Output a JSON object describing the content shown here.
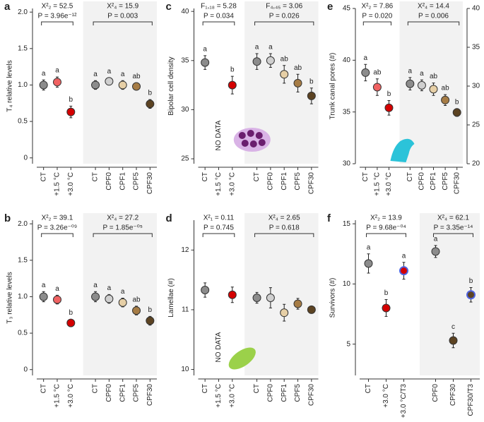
{
  "chart_data": [
    {
      "type": "dot",
      "panel": "a",
      "ylabel": "T₄ relative levels",
      "ylim": [
        -0.08,
        2.05
      ],
      "yticks": [
        0,
        0.5,
        {
          "value": 1,
          "label": "1.0"
        },
        1.5,
        {
          "value": 2,
          "label": "2.0"
        }
      ],
      "groups": [
        {
          "stat": "X²₂ = 52.5",
          "p": "P = 3.96e⁻¹²",
          "categories": [
            "CT",
            "+1.5 °C",
            "+3.0 °C"
          ],
          "values": [
            1.0,
            1.04,
            0.63
          ],
          "errors": [
            0.07,
            0.07,
            0.08
          ],
          "letters": [
            "a",
            "a",
            "b"
          ],
          "colors": [
            "#8c8c8c",
            "#f06262",
            "#d40000"
          ]
        },
        {
          "stat": "X²₄ = 15.9",
          "p": "P = 0.003",
          "categories": [
            "CT",
            "CPF0",
            "CPF1",
            "CPF5",
            "CPF30"
          ],
          "values": [
            1.0,
            1.05,
            1.0,
            0.98,
            0.74
          ],
          "errors": [
            0.06,
            0.05,
            0.06,
            0.05,
            0.06
          ],
          "letters": [
            "a",
            "a",
            "a",
            "ab",
            "b"
          ],
          "colors": [
            "#8c8c8c",
            "#cfcfcf",
            "#e6cfa6",
            "#a67c45",
            "#5c4322"
          ]
        }
      ]
    },
    {
      "type": "dot",
      "panel": "b",
      "ylabel": "T₃ relative levels",
      "ylim": [
        -0.08,
        2.05
      ],
      "yticks": [
        0,
        0.5,
        {
          "value": 1,
          "label": "1.0"
        },
        1.5,
        {
          "value": 2,
          "label": "2.0"
        }
      ],
      "groups": [
        {
          "stat": "X²₂ = 39.1",
          "p": "P = 3.26e⁻⁰⁹",
          "categories": [
            "CT",
            "+1.5 °C",
            "+3.0 °C"
          ],
          "values": [
            1.0,
            0.96,
            0.64
          ],
          "errors": [
            0.07,
            0.06,
            0.05
          ],
          "letters": [
            "a",
            "a",
            "b"
          ],
          "colors": [
            "#8c8c8c",
            "#f06262",
            "#d40000"
          ]
        },
        {
          "stat": "X²₄ = 27.2",
          "p": "P = 1.85e⁻⁰⁵",
          "categories": [
            "CT",
            "CPF0",
            "CPF1",
            "CPF5",
            "CPF30"
          ],
          "values": [
            1.0,
            0.97,
            0.92,
            0.81,
            0.67
          ],
          "errors": [
            0.07,
            0.06,
            0.06,
            0.06,
            0.06
          ],
          "letters": [
            "a",
            "a",
            "a",
            "ab",
            "b"
          ],
          "colors": [
            "#8c8c8c",
            "#cfcfcf",
            "#e6cfa6",
            "#a67c45",
            "#5c4322"
          ]
        }
      ]
    },
    {
      "type": "dot",
      "panel": "c",
      "ylabel": "Bipolar cell density",
      "ylim": [
        24.5,
        40.3
      ],
      "yticks": [
        25,
        30,
        35,
        40
      ],
      "no_data": "NO DATA",
      "icon": "cells",
      "groups": [
        {
          "stat": "F₁,₁₈ = 5.28",
          "p": "P = 0.034",
          "categories": [
            "CT",
            "+1.5 °C",
            "+3.0 °C"
          ],
          "values": [
            34.8,
            null,
            32.5
          ],
          "errors": [
            0.7,
            null,
            0.9
          ],
          "letters": [
            "a",
            null,
            "b"
          ],
          "colors": [
            "#8c8c8c",
            "#f06262",
            "#d40000"
          ]
        },
        {
          "stat": "F₄,₄₅ = 3.06",
          "p": "P = 0.026",
          "categories": [
            "CT",
            "CPF0",
            "CPF1",
            "CPF5",
            "CPF30"
          ],
          "values": [
            34.9,
            35.0,
            33.6,
            32.7,
            31.4
          ],
          "errors": [
            0.8,
            0.7,
            0.9,
            0.9,
            0.8
          ],
          "letters": [
            "a",
            "a",
            "ab",
            "ab",
            "b"
          ],
          "colors": [
            "#8c8c8c",
            "#cfcfcf",
            "#e6cfa6",
            "#a67c45",
            "#5c4322"
          ]
        }
      ]
    },
    {
      "type": "dot",
      "panel": "d",
      "ylabel": "Lamellae (#)",
      "ylim": [
        9.9,
        12.5
      ],
      "yticks": [
        10,
        11,
        12
      ],
      "no_data": "NO DATA",
      "icon": "leaf",
      "groups": [
        {
          "stat": "X²₁ = 0.11",
          "p": "P = 0.745",
          "categories": [
            "CT",
            "+1.5 °C",
            "+3.0 °C"
          ],
          "values": [
            11.33,
            null,
            11.25
          ],
          "errors": [
            0.12,
            null,
            0.13
          ],
          "colors": [
            "#8c8c8c",
            "#f06262",
            "#d40000"
          ]
        },
        {
          "stat": "X²₄ = 2.65",
          "p": "P = 0.618",
          "categories": [
            "CT",
            "CPF0",
            "CPF1",
            "CPF5",
            "CPF30"
          ],
          "values": [
            11.2,
            11.2,
            10.95,
            11.1,
            11.0
          ],
          "errors": [
            0.09,
            0.17,
            0.14,
            0.09,
            0.05
          ],
          "colors": [
            "#8c8c8c",
            "#cfcfcf",
            "#e6cfa6",
            "#a67c45",
            "#5c4322"
          ]
        }
      ]
    },
    {
      "type": "dot",
      "panel": "e",
      "ylabel": "Trunk canal pores (#)",
      "ylim": [
        30,
        45
      ],
      "yticks": [
        30,
        35,
        40,
        45
      ],
      "y2lim": [
        20,
        40
      ],
      "y2ticks": [
        20,
        25,
        30,
        35,
        40
      ],
      "icon": "skull",
      "groups": [
        {
          "stat": "X²₂ = 7.86",
          "p": "P = 0.020",
          "categories": [
            "CT",
            "+1.5 °C",
            "+3.0 °C"
          ],
          "values": [
            38.8,
            37.4,
            35.4
          ],
          "errors": [
            0.8,
            0.8,
            0.7
          ],
          "letters": [
            "a",
            "ab",
            "b"
          ],
          "colors": [
            "#8c8c8c",
            "#f06262",
            "#d40000"
          ]
        },
        {
          "stat": "X²₄ = 14.4",
          "p": "P = 0.006",
          "axis": "y2",
          "categories": [
            "CT",
            "CPF0",
            "CPF1",
            "CPF5",
            "CPF30"
          ],
          "values": [
            30.3,
            30.1,
            29.6,
            28.2,
            26.6
          ],
          "errors": [
            0.8,
            0.7,
            0.8,
            0.7,
            0.5
          ],
          "letters": [
            "a",
            "a",
            "ab",
            "ab",
            "b"
          ],
          "colors": [
            "#8c8c8c",
            "#cfcfcf",
            "#e6cfa6",
            "#a67c45",
            "#5c4322"
          ]
        }
      ]
    },
    {
      "type": "dot",
      "panel": "f",
      "ylabel": "Survivors (#)",
      "ylim": [
        2.4,
        15.3
      ],
      "yticks": [
        5,
        10,
        15
      ],
      "groups": [
        {
          "stat": "X²₂ = 13.9",
          "p": "P = 9.68e⁻⁰⁴",
          "categories": [
            "CT",
            "+3.0 °C",
            "+3.0 °C/T3"
          ],
          "values": [
            11.7,
            8.0,
            11.1
          ],
          "errors": [
            0.8,
            0.7,
            0.7
          ],
          "letters": [
            "a",
            "b",
            "a"
          ],
          "colors": [
            "#8c8c8c",
            "#d40000",
            "#d40000"
          ],
          "edge_colors": [
            "#333333",
            "#333333",
            "#4f63e0"
          ]
        },
        {
          "stat": "X²₄ = 62.1",
          "p": "P = 3.35e⁻¹⁴",
          "categories": [
            "CPF0",
            "CPF30",
            "CPF30/T3"
          ],
          "values": [
            12.7,
            5.3,
            9.1
          ],
          "errors": [
            0.5,
            0.6,
            0.6
          ],
          "letters": [
            "a",
            "c",
            "b"
          ],
          "colors": [
            "#8c8c8c",
            "#5c4322",
            "#5c4322"
          ],
          "edge_colors": [
            "#333333",
            "#333333",
            "#4f63e0"
          ]
        }
      ]
    }
  ]
}
